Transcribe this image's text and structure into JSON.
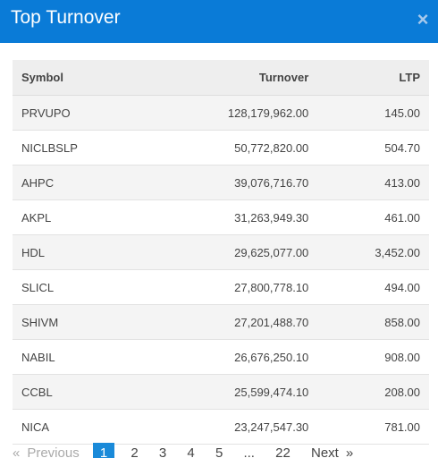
{
  "modal": {
    "title": "Top Turnover",
    "close_glyph": "×"
  },
  "table": {
    "headers": {
      "symbol": "Symbol",
      "turnover": "Turnover",
      "ltp": "LTP"
    },
    "rows": [
      {
        "symbol": "PRVUPO",
        "turnover": "128,179,962.00",
        "ltp": "145.00"
      },
      {
        "symbol": "NICLBSLP",
        "turnover": "50,772,820.00",
        "ltp": "504.70"
      },
      {
        "symbol": "AHPC",
        "turnover": "39,076,716.70",
        "ltp": "413.00"
      },
      {
        "symbol": "AKPL",
        "turnover": "31,263,949.30",
        "ltp": "461.00"
      },
      {
        "symbol": "HDL",
        "turnover": "29,625,077.00",
        "ltp": "3,452.00"
      },
      {
        "symbol": "SLICL",
        "turnover": "27,800,778.10",
        "ltp": "494.00"
      },
      {
        "symbol": "SHIVM",
        "turnover": "27,201,488.70",
        "ltp": "858.00"
      },
      {
        "symbol": "NABIL",
        "turnover": "26,676,250.10",
        "ltp": "908.00"
      },
      {
        "symbol": "CCBL",
        "turnover": "25,599,474.10",
        "ltp": "208.00"
      },
      {
        "symbol": "NICA",
        "turnover": "23,247,547.30",
        "ltp": "781.00"
      }
    ]
  },
  "pagination": {
    "prev_arrow": "«",
    "prev_label": "Previous",
    "pages": [
      "1",
      "2",
      "3",
      "4",
      "5"
    ],
    "ellipsis": "...",
    "last_page": "22",
    "next_label": "Next",
    "next_arrow": "»",
    "current_page": "1"
  },
  "colors": {
    "header_bg": "#0a7bd7",
    "active_page_bg": "#1a8ad9",
    "table_header_bg": "#eeeeee",
    "row_stripe_bg": "#f4f4f4"
  }
}
